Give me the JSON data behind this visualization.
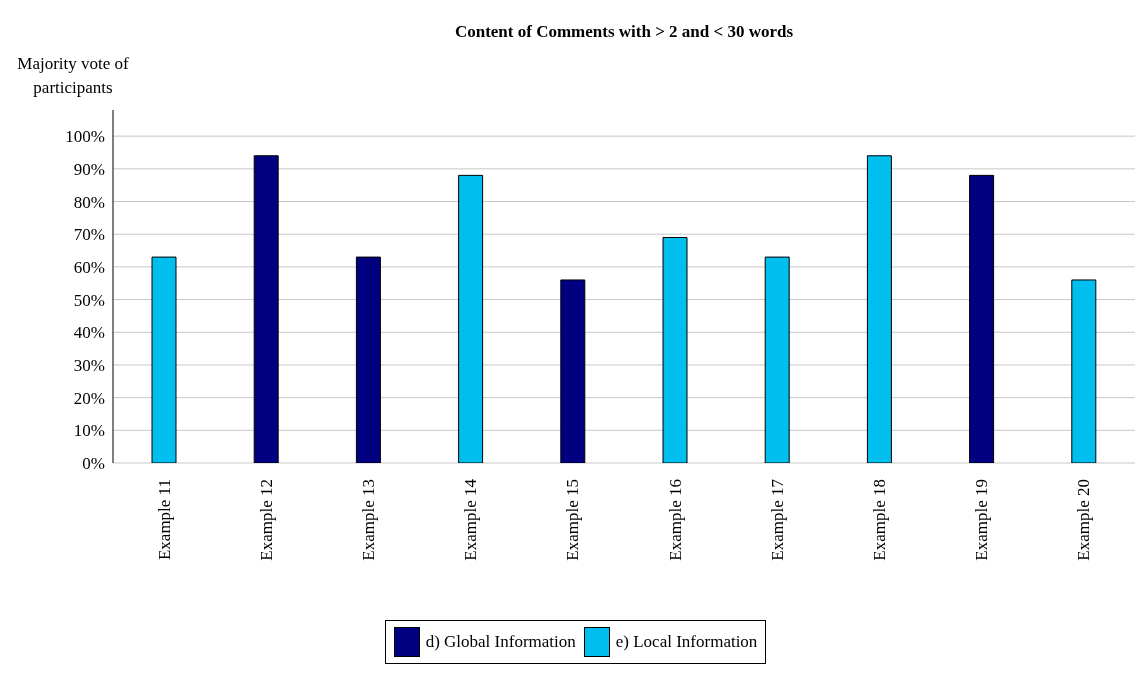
{
  "chart_data": {
    "type": "bar",
    "title": "Content of Comments with > 2 and < 30 words",
    "ylabel": "Majority vote of participants",
    "categories": [
      "Example 11",
      "Example 12",
      "Example 13",
      "Example 14",
      "Example 15",
      "Example 16",
      "Example 17",
      "Example 18",
      "Example 19",
      "Example 20"
    ],
    "series": [
      {
        "name": "d) Global Information",
        "color": "#000080",
        "values": [
          null,
          94,
          63,
          null,
          56,
          null,
          null,
          null,
          88,
          null
        ]
      },
      {
        "name": "e) Local Information",
        "color": "#00bfef",
        "values": [
          63,
          null,
          null,
          88,
          null,
          69,
          63,
          94,
          null,
          56
        ]
      }
    ],
    "stacked": true,
    "ylim": [
      0,
      108
    ],
    "yticks": [
      {
        "value": 0,
        "label": "0%"
      },
      {
        "value": 10,
        "label": "10%"
      },
      {
        "value": 20,
        "label": "20%"
      },
      {
        "value": 30,
        "label": "30%"
      },
      {
        "value": 40,
        "label": "40%"
      },
      {
        "value": 50,
        "label": "50%"
      },
      {
        "value": 60,
        "label": "60%"
      },
      {
        "value": 70,
        "label": "70%"
      },
      {
        "value": 80,
        "label": "80%"
      },
      {
        "value": 90,
        "label": "90%"
      },
      {
        "value": 100,
        "label": "100%"
      }
    ],
    "grid": "y",
    "legend": "bottom"
  }
}
